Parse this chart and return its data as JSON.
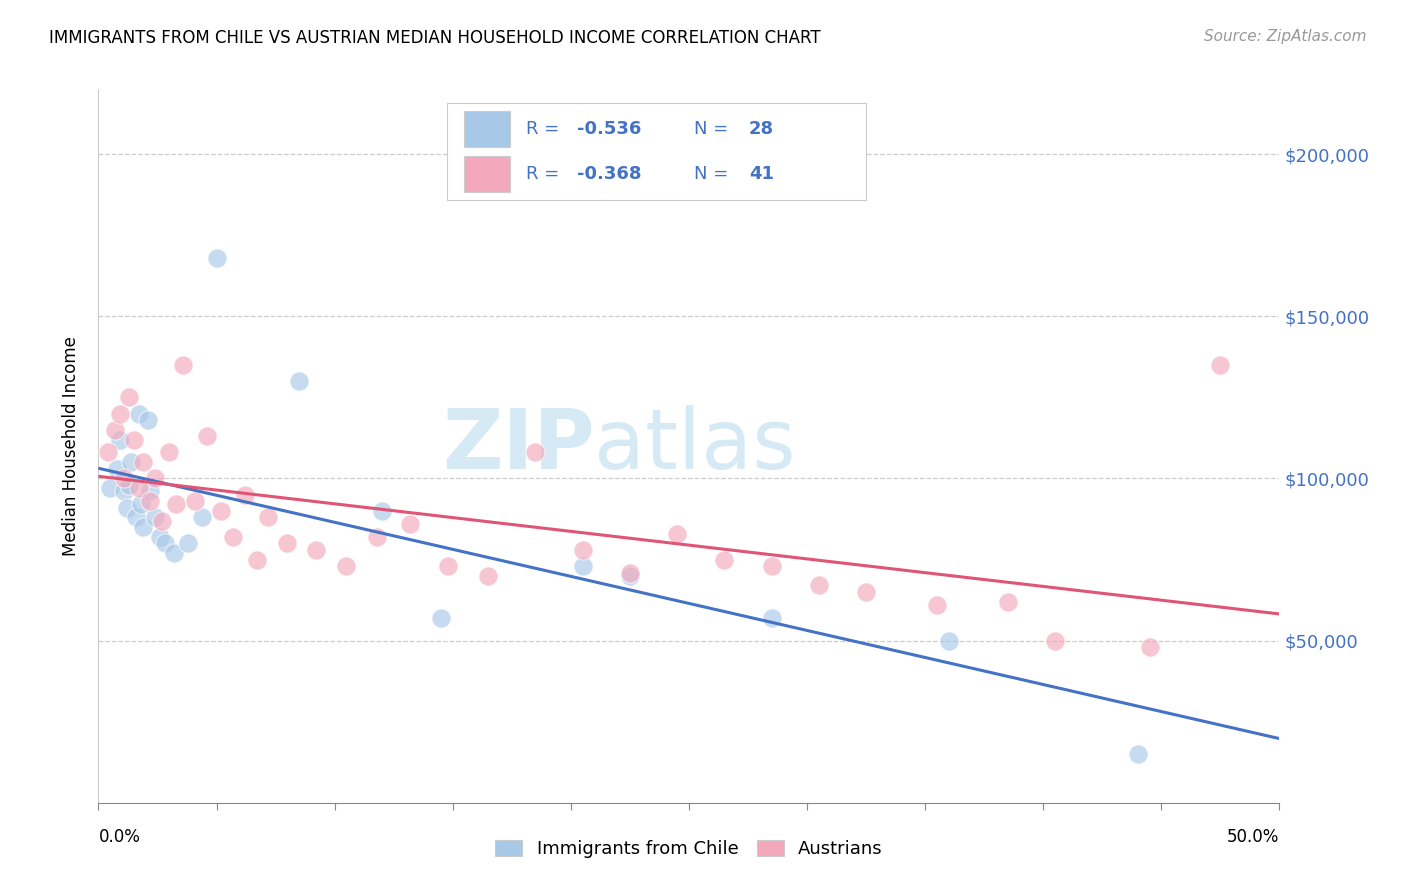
{
  "title": "IMMIGRANTS FROM CHILE VS AUSTRIAN MEDIAN HOUSEHOLD INCOME CORRELATION CHART",
  "source": "Source: ZipAtlas.com",
  "ylabel": "Median Household Income",
  "ytick_labels": [
    "$50,000",
    "$100,000",
    "$150,000",
    "$200,000"
  ],
  "ytick_values": [
    50000,
    100000,
    150000,
    200000
  ],
  "ylim": [
    0,
    220000
  ],
  "xlim": [
    0.0,
    0.5
  ],
  "blue_scatter_color": "#A8C8E8",
  "pink_scatter_color": "#F4A8BC",
  "blue_line_color": "#4472C4",
  "pink_line_color": "#E05575",
  "blue_text_color": "#4472C4",
  "pink_text_color": "#E05575",
  "watermark_color": "#D5EAF5",
  "grid_color": "#CCCCCC",
  "legend_text_color": "#4472C4",
  "chile_x": [
    0.005,
    0.008,
    0.009,
    0.011,
    0.012,
    0.013,
    0.014,
    0.016,
    0.017,
    0.018,
    0.019,
    0.021,
    0.022,
    0.024,
    0.026,
    0.028,
    0.032,
    0.038,
    0.044,
    0.05,
    0.085,
    0.12,
    0.145,
    0.205,
    0.225,
    0.285,
    0.36,
    0.44
  ],
  "chile_y": [
    97000,
    103000,
    112000,
    96000,
    91000,
    98000,
    105000,
    88000,
    120000,
    92000,
    85000,
    118000,
    96000,
    88000,
    82000,
    80000,
    77000,
    80000,
    88000,
    168000,
    130000,
    90000,
    57000,
    73000,
    70000,
    57000,
    50000,
    15000
  ],
  "austria_x": [
    0.004,
    0.007,
    0.009,
    0.011,
    0.013,
    0.015,
    0.017,
    0.019,
    0.022,
    0.024,
    0.027,
    0.03,
    0.033,
    0.036,
    0.041,
    0.046,
    0.052,
    0.057,
    0.062,
    0.067,
    0.072,
    0.08,
    0.092,
    0.105,
    0.118,
    0.132,
    0.148,
    0.165,
    0.185,
    0.205,
    0.225,
    0.245,
    0.265,
    0.285,
    0.305,
    0.325,
    0.355,
    0.385,
    0.405,
    0.445,
    0.475
  ],
  "austria_y": [
    108000,
    115000,
    120000,
    100000,
    125000,
    112000,
    97000,
    105000,
    93000,
    100000,
    87000,
    108000,
    92000,
    135000,
    93000,
    113000,
    90000,
    82000,
    95000,
    75000,
    88000,
    80000,
    78000,
    73000,
    82000,
    86000,
    73000,
    70000,
    108000,
    78000,
    71000,
    83000,
    75000,
    73000,
    67000,
    65000,
    61000,
    62000,
    50000,
    48000,
    135000
  ]
}
